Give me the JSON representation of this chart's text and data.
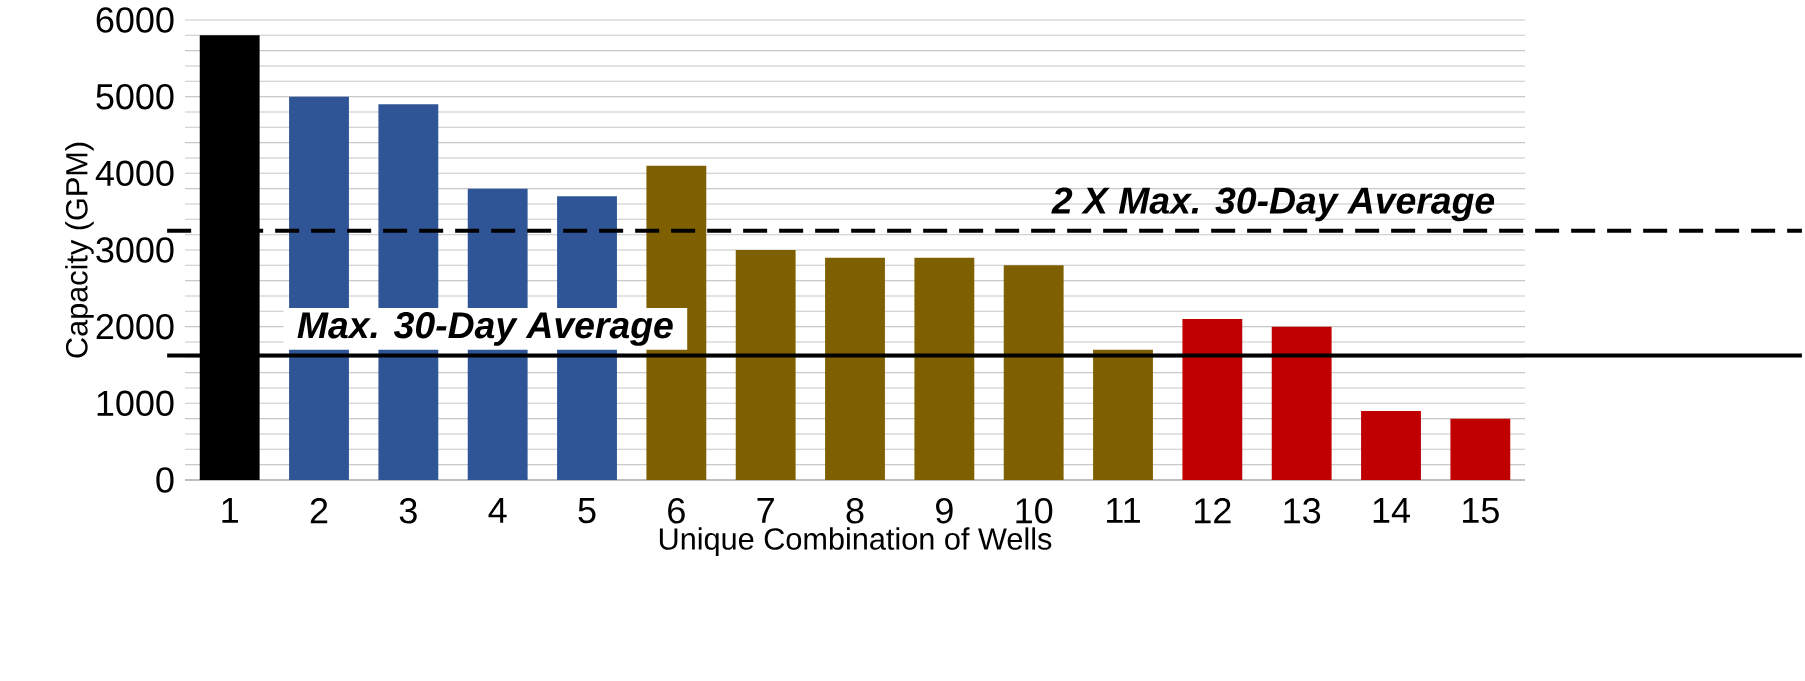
{
  "chart_data": {
    "type": "bar",
    "xlabel": "Unique Combination of Wells",
    "ylabel": "Capacity (GPM)",
    "categories": [
      "1",
      "2",
      "3",
      "4",
      "5",
      "6",
      "7",
      "8",
      "9",
      "10",
      "11",
      "12",
      "13",
      "14",
      "15"
    ],
    "values": [
      5800,
      5000,
      4900,
      3800,
      3700,
      4100,
      3000,
      2900,
      2900,
      2800,
      1700,
      2100,
      2000,
      900,
      800
    ],
    "colors": [
      "#000000",
      "#2f5597",
      "#2f5597",
      "#2f5597",
      "#2f5597",
      "#7f6000",
      "#7f6000",
      "#7f6000",
      "#7f6000",
      "#7f6000",
      "#7f6000",
      "#c00000",
      "#c00000",
      "#c00000",
      "#c00000"
    ],
    "ylim": [
      0,
      6000
    ],
    "yticks": [
      0,
      {
        "value": 200,
        "label": null
      },
      {
        "value": 400,
        "label": null
      },
      {
        "value": 600,
        "label": null
      },
      {
        "value": 800,
        "label": null
      },
      1000,
      {
        "value": 1200,
        "label": null
      },
      {
        "value": 1400,
        "label": null
      },
      {
        "value": 1600,
        "label": null
      },
      {
        "value": 1800,
        "label": null
      },
      2000,
      {
        "value": 2200,
        "label": null
      },
      {
        "value": 2400,
        "label": null
      },
      {
        "value": 2600,
        "label": null
      },
      {
        "value": 2800,
        "label": null
      },
      3000,
      {
        "value": 3200,
        "label": null
      },
      {
        "value": 3400,
        "label": null
      },
      {
        "value": 3600,
        "label": null
      },
      {
        "value": 3800,
        "label": null
      },
      4000,
      {
        "value": 4200,
        "label": null
      },
      {
        "value": 4400,
        "label": null
      },
      {
        "value": 4600,
        "label": null
      },
      {
        "value": 4800,
        "label": null
      },
      5000,
      {
        "value": 5200,
        "label": null
      },
      {
        "value": 5400,
        "label": null
      },
      {
        "value": 5600,
        "label": null
      },
      {
        "value": 5800,
        "label": null
      },
      6000
    ],
    "grid": "y",
    "ref_lines": [
      {
        "axis": "y",
        "value": 3250,
        "label": "2 X Max. 30-Day Average",
        "color": "#000000",
        "line_style": "dashed"
      },
      {
        "axis": "y",
        "value": 1625,
        "label": "Max. 30-Day Average",
        "color": "#000000",
        "line_style": "solid"
      }
    ]
  }
}
